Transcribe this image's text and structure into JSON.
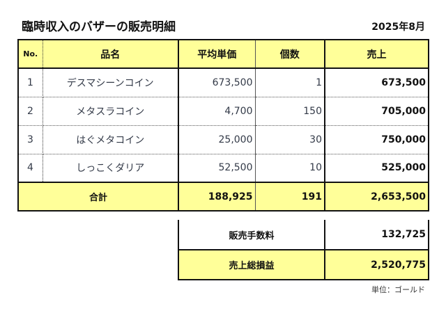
{
  "title": "臨時収入のバザーの販売明細",
  "period": "2025年8月",
  "table": {
    "headers": {
      "no": "No.",
      "name": "品名",
      "avg_price": "平均単価",
      "qty": "個数",
      "sales": "売上"
    },
    "rows": [
      {
        "no": "1",
        "name": "デスマシーンコイン",
        "avg_price": "673,500",
        "qty": "1",
        "sales": "673,500"
      },
      {
        "no": "2",
        "name": "メタスラコイン",
        "avg_price": "4,700",
        "qty": "150",
        "sales": "705,000"
      },
      {
        "no": "3",
        "name": "はぐメタコイン",
        "avg_price": "25,000",
        "qty": "30",
        "sales": "750,000"
      },
      {
        "no": "4",
        "name": "しっこくダリア",
        "avg_price": "52,500",
        "qty": "10",
        "sales": "525,000"
      }
    ],
    "total": {
      "label": "合計",
      "avg_price": "188,925",
      "qty": "191",
      "sales": "2,653,500"
    }
  },
  "summary": {
    "fee": {
      "label": "販売手数料",
      "value": "132,725"
    },
    "gross": {
      "label": "売上総損益",
      "value": "2,520,775"
    }
  },
  "unit_note": "単位：ゴールド",
  "colors": {
    "header_fill": "#ffff99",
    "border": "#111111"
  }
}
